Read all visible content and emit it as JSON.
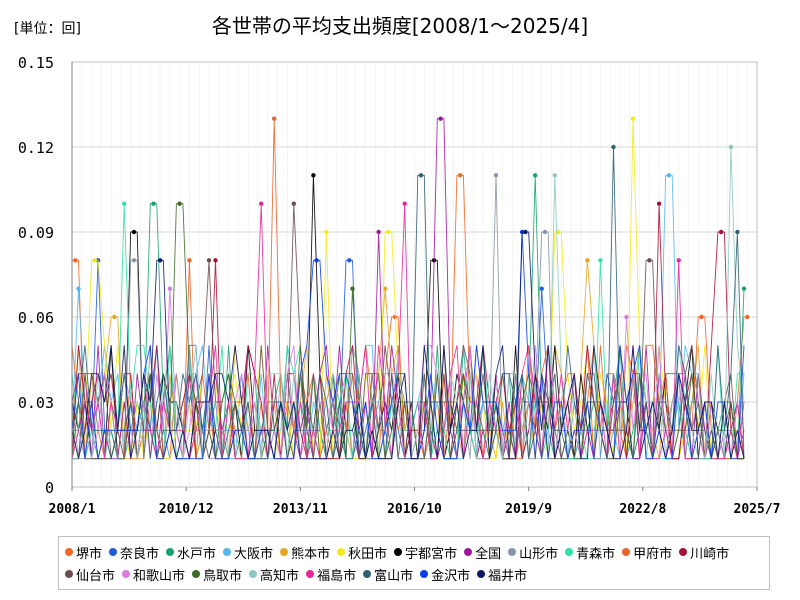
{
  "unit_label": "[単位：回]",
  "chart_data": {
    "type": "line",
    "title": "各世帯の平均支出頻度[2008/1～2025/4]",
    "xlabel": "",
    "ylabel": "",
    "ylim": [
      0,
      0.15
    ],
    "y_ticks": [
      "0",
      "0.03",
      "0.06",
      "0.09",
      "0.12",
      "0.15"
    ],
    "x_ticks": [
      "2008/1",
      "2010/12",
      "2013/11",
      "2016/10",
      "2019/9",
      "2022/8",
      "2025/7"
    ],
    "grid": true,
    "legend_position": "bottom",
    "series": [
      {
        "name": "堺市",
        "color": "#f26522",
        "peaks": [
          [
            "2008/2",
            0.08
          ],
          [
            "2016/4",
            0.06
          ],
          [
            "2017/12",
            0.11
          ],
          [
            "2025/4",
            0.06
          ]
        ]
      },
      {
        "name": "奈良市",
        "color": "#1f5bd6",
        "peaks": [
          [
            "2008/9",
            0.08
          ],
          [
            "2015/2",
            0.08
          ],
          [
            "2020/1",
            0.07
          ]
        ]
      },
      {
        "name": "水戸市",
        "color": "#17a36b",
        "peaks": [
          [
            "2010/2",
            0.1
          ],
          [
            "2019/11",
            0.11
          ],
          [
            "2025/3",
            0.07
          ]
        ]
      },
      {
        "name": "大阪市",
        "color": "#55b6f0",
        "peaks": [
          [
            "2008/3",
            0.07
          ],
          [
            "2023/4",
            0.11
          ]
        ]
      },
      {
        "name": "熊本市",
        "color": "#e6a620",
        "peaks": [
          [
            "2009/2",
            0.06
          ],
          [
            "2016/1",
            0.07
          ],
          [
            "2021/3",
            0.08
          ]
        ]
      },
      {
        "name": "秋田市",
        "color": "#f2ea1c",
        "peaks": [
          [
            "2008/8",
            0.08
          ],
          [
            "2014/7",
            0.09
          ],
          [
            "2016/2",
            0.09
          ],
          [
            "2020/6",
            0.09
          ],
          [
            "2022/5",
            0.13
          ]
        ]
      },
      {
        "name": "宇都宮市",
        "color": "#000000",
        "peaks": [
          [
            "2009/8",
            0.09
          ],
          [
            "2014/3",
            0.11
          ],
          [
            "2017/4",
            0.08
          ]
        ]
      },
      {
        "name": "全国",
        "color": "#a0179e",
        "peaks": [
          [
            "2015/11",
            0.09
          ],
          [
            "2017/6",
            0.13
          ]
        ]
      },
      {
        "name": "山形市",
        "color": "#8a94a6",
        "peaks": [
          [
            "2009/8",
            0.08
          ],
          [
            "2018/11",
            0.11
          ],
          [
            "2020/2",
            0.09
          ]
        ]
      },
      {
        "name": "青森市",
        "color": "#2ee0a8",
        "peaks": [
          [
            "2009/5",
            0.1
          ],
          [
            "2021/7",
            0.08
          ]
        ]
      },
      {
        "name": "甲府市",
        "color": "#e8642b",
        "peaks": [
          [
            "2011/1",
            0.08
          ],
          [
            "2013/3",
            0.13
          ],
          [
            "2024/2",
            0.06
          ]
        ]
      },
      {
        "name": "川崎市",
        "color": "#a8123a",
        "peaks": [
          [
            "2011/9",
            0.08
          ],
          [
            "2023/1",
            0.1
          ],
          [
            "2024/8",
            0.09
          ]
        ]
      },
      {
        "name": "仙台市",
        "color": "#6b4c4c",
        "peaks": [
          [
            "2011/7",
            0.08
          ],
          [
            "2013/9",
            0.1
          ],
          [
            "2022/10",
            0.08
          ]
        ]
      },
      {
        "name": "和歌山市",
        "color": "#d97ae0",
        "peaks": [
          [
            "2010/7",
            0.07
          ],
          [
            "2022/3",
            0.06
          ]
        ]
      },
      {
        "name": "鳥取市",
        "color": "#3c6b2a",
        "peaks": [
          [
            "2010/10",
            0.1
          ],
          [
            "2015/3",
            0.07
          ]
        ]
      },
      {
        "name": "高知市",
        "color": "#8ec9c0",
        "peaks": [
          [
            "2020/5",
            0.11
          ],
          [
            "2024/11",
            0.12
          ]
        ]
      },
      {
        "name": "福島市",
        "color": "#e8289a",
        "peaks": [
          [
            "2012/11",
            0.1
          ],
          [
            "2016/7",
            0.1
          ],
          [
            "2023/7",
            0.08
          ]
        ]
      },
      {
        "name": "富山市",
        "color": "#2f5e75",
        "peaks": [
          [
            "2016/12",
            0.11
          ],
          [
            "2021/11",
            0.12
          ],
          [
            "2025/1",
            0.09
          ]
        ]
      },
      {
        "name": "金沢市",
        "color": "#0a3cf0",
        "peaks": [
          [
            "2014/4",
            0.08
          ],
          [
            "2019/7",
            0.09
          ]
        ]
      },
      {
        "name": "福井市",
        "color": "#0b1a66",
        "peaks": [
          [
            "2010/4",
            0.08
          ],
          [
            "2019/8",
            0.09
          ]
        ]
      }
    ]
  }
}
